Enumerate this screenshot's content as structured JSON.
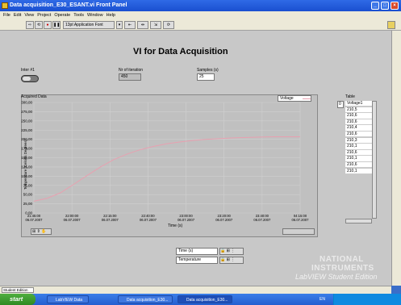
{
  "window": {
    "title": "Data acquisition_E30_ESANT.vi Front Panel"
  },
  "menu": [
    "File",
    "Edit",
    "View",
    "Project",
    "Operate",
    "Tools",
    "Window",
    "Help"
  ],
  "toolbar": {
    "font_label": "13pt Application Font"
  },
  "vi_title": "VI for Data Acquisition",
  "controls": {
    "switch_label": "Inter #1",
    "nr_iteration_label": "Nr of iteration",
    "nr_iteration_value": "450",
    "samples_label": "Samples (s)",
    "samples_value": "25"
  },
  "graph": {
    "label": "Acquired Data",
    "plot_legend": "Voltage",
    "ylabel": "Temperature [Celsius Degrees]",
    "xlabel": "Time (s)",
    "legend_rows": [
      "Time (s)",
      "Temperature"
    ]
  },
  "table": {
    "label": "Table",
    "index": "0",
    "rows": [
      "Voltage1",
      "210,5",
      "210,6",
      "210,6",
      "210,4",
      "210,6",
      "210,3",
      "210,1",
      "210,6",
      "210,1",
      "210,6",
      "210,1"
    ]
  },
  "watermark": {
    "line1": "NATIONAL",
    "line2": "INSTRUMENTS",
    "line3": "LabVIEW Student Edition"
  },
  "status_bar": {
    "label": "Student Edition"
  },
  "taskbar": {
    "start": "start",
    "items": [
      "LabVIEW Data",
      "Data acquisition_E30...",
      "Data acquisition_E30..."
    ],
    "tray_lang": "EN"
  },
  "colors": {
    "plot_line": "#e8a0b0",
    "panel": "#c8c8c8"
  },
  "chart_data": {
    "type": "line",
    "title": "",
    "xlabel": "Time (s)",
    "ylabel": "Temperature [Celsius Degrees]",
    "ylim": [
      0,
      300
    ],
    "yticks": [
      "0,00",
      "25,00",
      "50,00",
      "75,00",
      "100,00",
      "125,00",
      "150,00",
      "175,00",
      "200,00",
      "225,00",
      "250,00",
      "275,00",
      "300,00"
    ],
    "xticks": [
      [
        "21:45:00",
        "06.07.2007"
      ],
      [
        "22:00:00",
        "06.07.2007"
      ],
      [
        "22:15:00",
        "06.07.2007"
      ],
      [
        "22:40:00",
        "06.07.2007"
      ],
      [
        "23:00:00",
        "06.07.2007"
      ],
      [
        "23:20:00",
        "06.07.2007"
      ],
      [
        "23:40:00",
        "06.07.2007"
      ],
      [
        "04:15:00",
        "06.07.2007"
      ]
    ],
    "grid": true,
    "series": [
      {
        "name": "Voltage",
        "x": [
          0,
          0.05,
          0.1,
          0.15,
          0.2,
          0.25,
          0.3,
          0.35,
          0.4,
          0.45,
          0.5,
          0.55,
          0.6,
          0.65,
          0.7,
          0.75,
          0.8,
          0.85,
          0.9,
          0.95,
          1.0
        ],
        "values": [
          32,
          40,
          55,
          78,
          102,
          125,
          145,
          160,
          172,
          181,
          188,
          193,
          197,
          200,
          202,
          204,
          205,
          206,
          207,
          207,
          207
        ]
      }
    ]
  }
}
